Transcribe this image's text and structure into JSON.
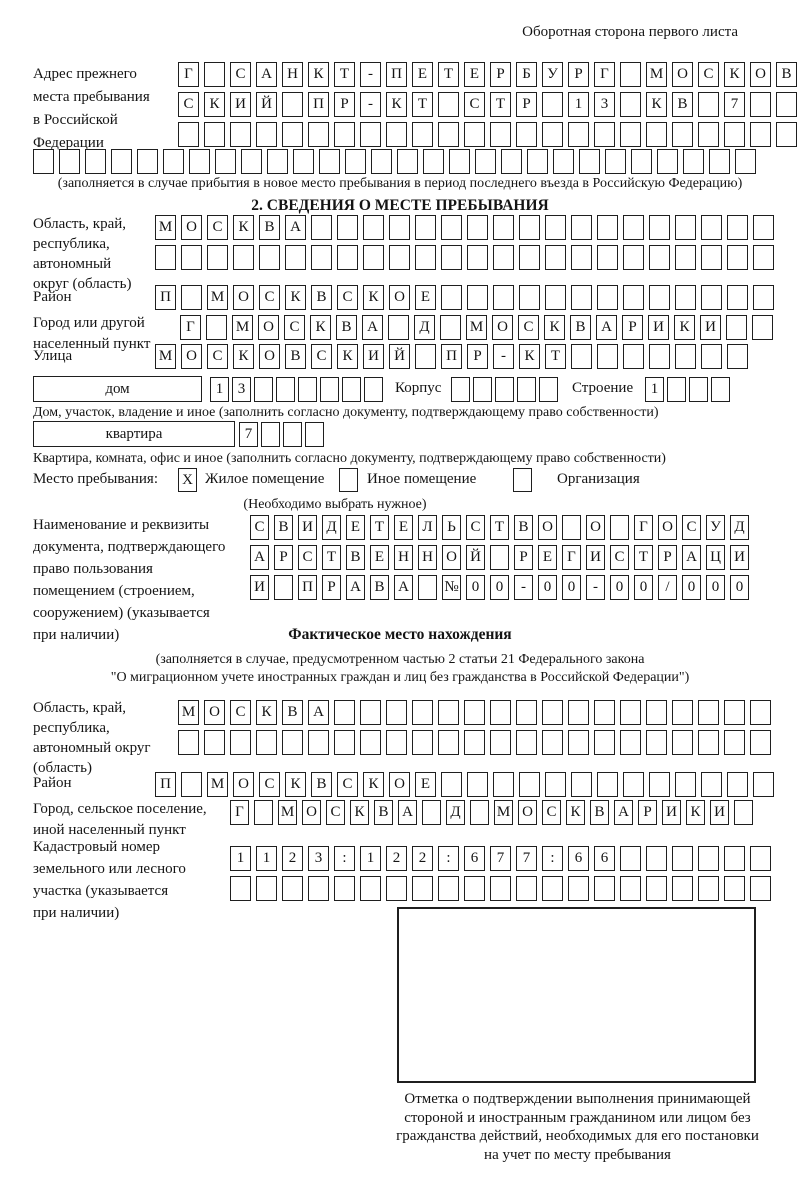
{
  "page": {
    "title": "Оборотная сторона первого листа"
  },
  "prev_address": {
    "label_lines": [
      "Адрес прежнего",
      "места пребывания",
      "в Российской",
      "Федерации"
    ],
    "rows": [
      {
        "len": 24,
        "text": "Г САНКТ-ПЕТЕРБУРГ МОСКОВ"
      },
      {
        "len": 24,
        "text": "СКИЙ ПР-КТ СТР 13 КВ 7"
      },
      {
        "len": 24,
        "text": ""
      },
      {
        "len": 28,
        "text": ""
      }
    ],
    "note": "(заполняется в случае прибытия в новое место пребывания в период последнего въезда в Российскую Федерацию)"
  },
  "section2": {
    "title": "2. СВЕДЕНИЯ О МЕСТЕ ПРЕБЫВАНИЯ",
    "region": {
      "label_lines": [
        "Область, край,",
        "республика,",
        "автономный",
        "округ (область)"
      ],
      "rows": [
        {
          "len": 24,
          "text": "МОСКВА"
        },
        {
          "len": 24,
          "text": ""
        }
      ]
    },
    "district": {
      "label": "Район",
      "row": {
        "len": 24,
        "text": "П МОСКВСКОЕ"
      }
    },
    "city": {
      "label_lines": [
        "Город или другой",
        "населенный пункт"
      ],
      "row": {
        "len": 23,
        "text": "Г МОСКВА Д МОСКВАРИКИ"
      }
    },
    "street": {
      "label": "Улица",
      "row": {
        "len": 23,
        "text": "МОСКОВСКИЙ ПР-КТ"
      }
    },
    "house": {
      "box_label": "дом",
      "cells": {
        "len": 8,
        "text": "13"
      },
      "korpus_label": "Корпус",
      "korpus_cells": {
        "len": 5,
        "text": ""
      },
      "stroenie_label": "Строение",
      "stroenie_cells": {
        "len": 4,
        "text": "1"
      }
    },
    "house_note": "Дом, участок, владение и иное (заполнить согласно документу, подтверждающему право собственности)",
    "apartment": {
      "box_label": "квартира",
      "cells": {
        "len": 4,
        "text": "7"
      }
    },
    "apartment_note": "Квартира, комната, офис и иное (заполнить согласно документу, подтверждающему право собственности)",
    "stay_type": {
      "label": "Место пребывания:",
      "options": [
        {
          "label": "Жилое помещение",
          "checked": "X"
        },
        {
          "label": "Иное помещение",
          "checked": ""
        },
        {
          "label": "Организация",
          "checked": ""
        }
      ],
      "note": "(Необходимо выбрать нужное)"
    },
    "doc": {
      "label_lines": [
        "Наименование и реквизиты",
        "документа, подтверждающего",
        "право пользования",
        "помещением (строением,",
        "сооружением) (указывается",
        "при наличии)"
      ],
      "rows": [
        {
          "len": 21,
          "text": "СВИДЕТЕЛЬСТВО О ГОСУД"
        },
        {
          "len": 21,
          "text": "АРСТВЕННОЙ РЕГИСТРАЦИ"
        },
        {
          "len": 21,
          "text": "И ПРАВА №00-00-00/000"
        }
      ]
    }
  },
  "section3": {
    "title": "Фактическое место нахождения",
    "note_lines": [
      "(заполняется в случае, предусмотренном частью 2 статьи 21 Федерального закона",
      "\"О миграционном учете иностранных граждан и лиц без гражданства в Российской Федерации\")"
    ],
    "region": {
      "label_lines": [
        "Область, край,",
        "республика,",
        "автономный округ",
        "(область)"
      ],
      "rows": [
        {
          "len": 23,
          "text": "МОСКВА"
        },
        {
          "len": 23,
          "text": ""
        }
      ]
    },
    "district": {
      "label": "Район",
      "row": {
        "len": 24,
        "text": "П МОСКВСКОЕ"
      }
    },
    "city": {
      "label_lines": [
        "Город, сельское поселение,",
        "иной населенный пункт"
      ],
      "row": {
        "len": 22,
        "text": "Г МОСКВА Д МОСКВАРИКИ"
      }
    },
    "cadastre": {
      "label_lines": [
        "Кадастровый номер",
        "земельного или лесного",
        "участка (указывается",
        "при наличии)"
      ],
      "rows": [
        {
          "len": 21,
          "text": "1123:122:677:66"
        },
        {
          "len": 21,
          "text": ""
        }
      ]
    },
    "stamp_caption": "Отметка о подтверждении выполнения принимающей стороной и иностранным гражданином или лицом без гражданства действий, необходимых для его постановки на учет по месту пребывания"
  }
}
